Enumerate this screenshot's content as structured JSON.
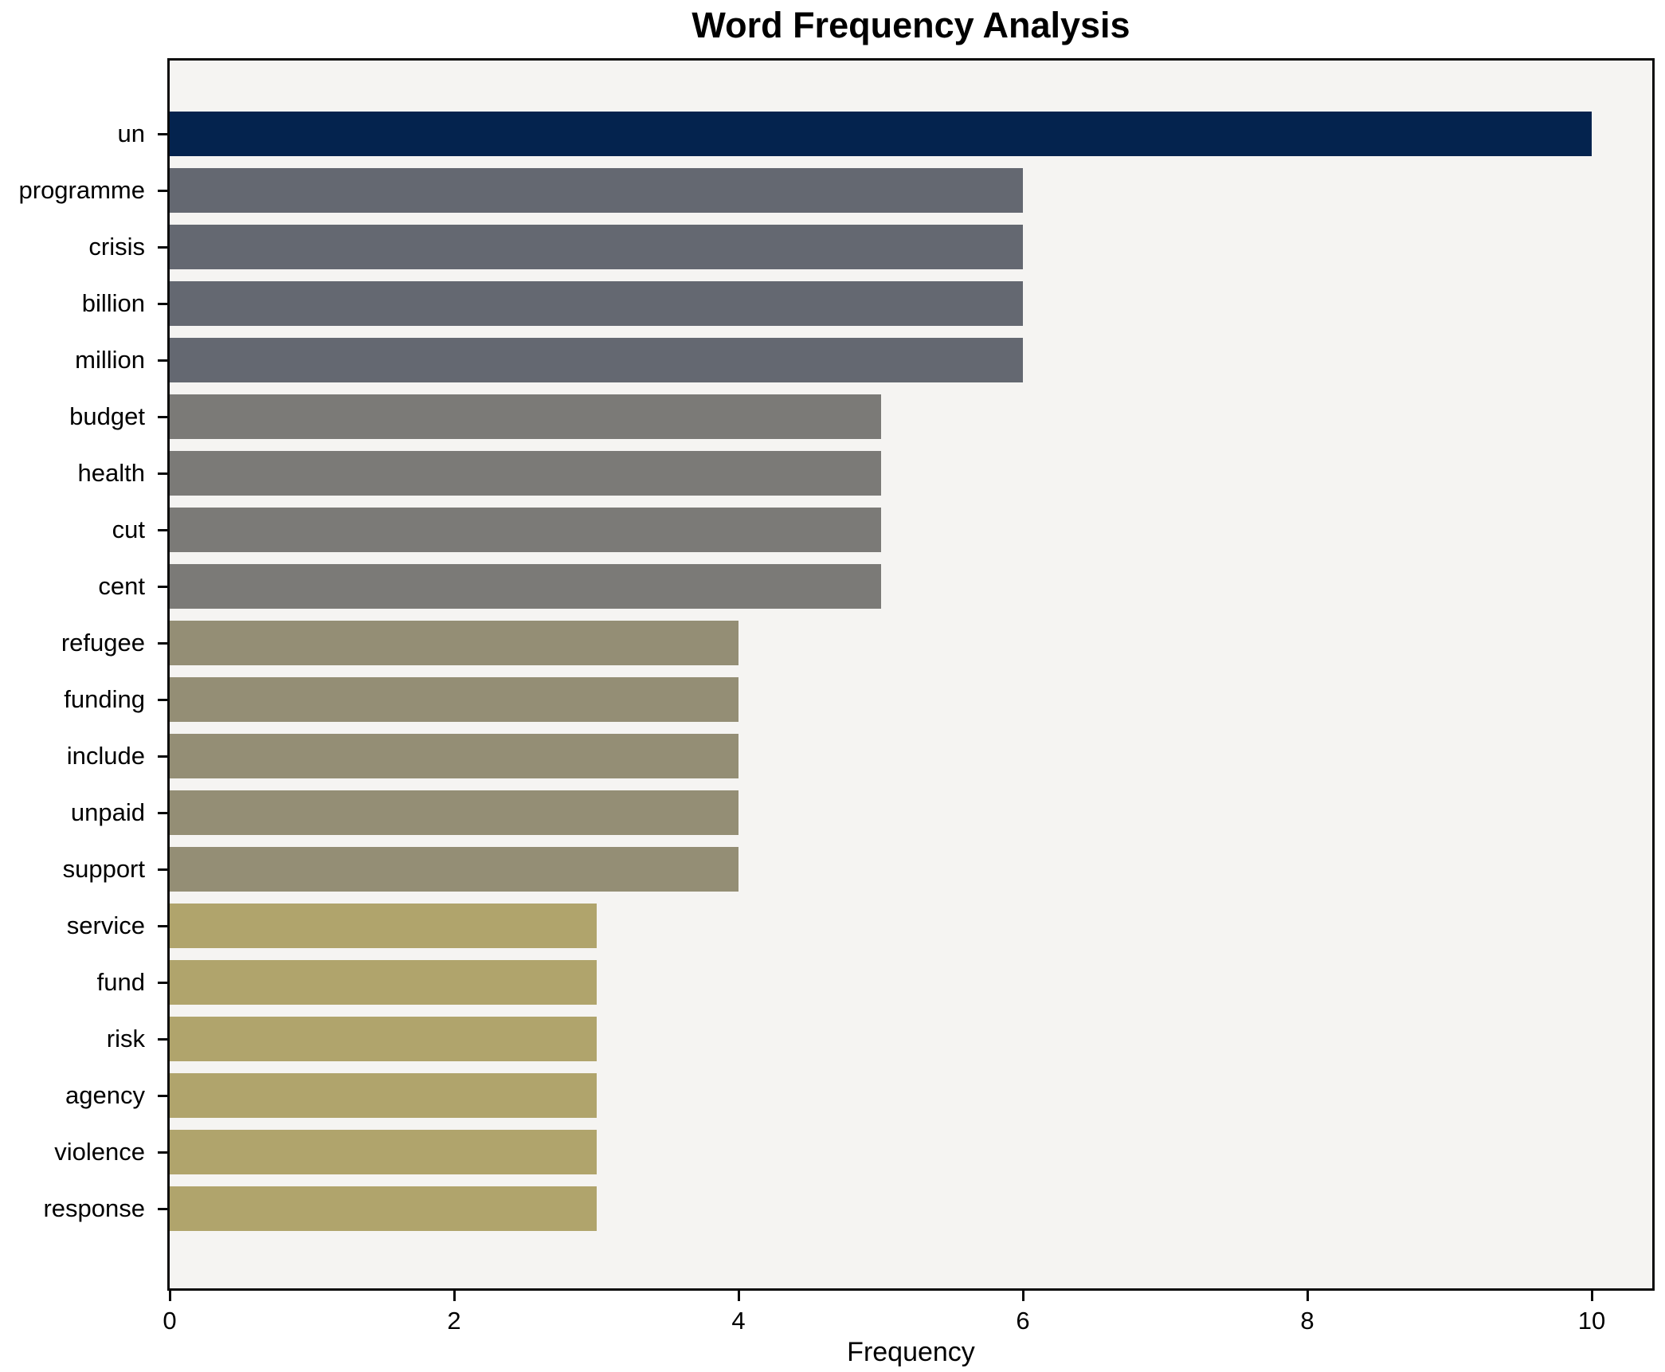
{
  "chart_data": {
    "type": "bar",
    "orientation": "horizontal",
    "title": "Word Frequency Analysis",
    "xlabel": "Frequency",
    "ylabel": "",
    "categories": [
      "un",
      "programme",
      "crisis",
      "billion",
      "million",
      "budget",
      "health",
      "cut",
      "cent",
      "refugee",
      "funding",
      "include",
      "unpaid",
      "support",
      "service",
      "fund",
      "risk",
      "agency",
      "violence",
      "response"
    ],
    "values": [
      10,
      6,
      6,
      6,
      6,
      5,
      5,
      5,
      5,
      4,
      4,
      4,
      4,
      4,
      3,
      3,
      3,
      3,
      3,
      3
    ],
    "bar_colors": [
      "#04234e",
      "#646871",
      "#646871",
      "#646871",
      "#646871",
      "#7b7a77",
      "#7b7a77",
      "#7b7a77",
      "#7b7a77",
      "#948e75",
      "#948e75",
      "#948e75",
      "#948e75",
      "#948e75",
      "#b0a46c",
      "#b0a46c",
      "#b0a46c",
      "#b0a46c",
      "#b0a46c",
      "#b0a46c"
    ],
    "xticks": [
      0,
      2,
      4,
      6,
      8,
      10
    ],
    "xlim": [
      0,
      10.44
    ],
    "grid": false,
    "legend": null,
    "plot_background": "#f5f4f2",
    "figure_background": "#ffffff"
  }
}
